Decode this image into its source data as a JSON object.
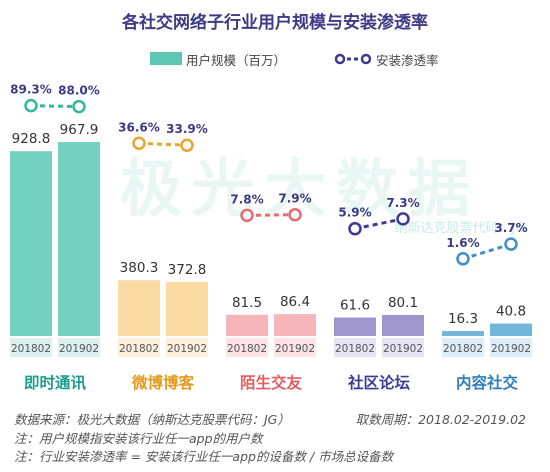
{
  "title": "各社交网络子行业用户规模与安装渗透率",
  "legend": {
    "bar_label": "用户规模（百万）",
    "line_label": "安装渗透率"
  },
  "watermark": "极光大数据",
  "watermark_sub": "纳斯达克股票代码：JG",
  "chart_data": {
    "type": "bar",
    "title": "各社交网络子行业用户规模与安装渗透率",
    "period_labels": [
      "201802",
      "201902"
    ],
    "categories": [
      {
        "name": "即时通讯",
        "values": [
          928.8,
          967.9
        ],
        "penetration": [
          89.3,
          88.0
        ],
        "color": "#5cc8b4",
        "line_color": "#2fb89a",
        "tile": "#dbeff0",
        "name_color": "#1f9e8e"
      },
      {
        "name": "微博博客",
        "values": [
          380.3,
          372.8
        ],
        "penetration": [
          36.6,
          33.9
        ],
        "color": "#f9d38f",
        "line_color": "#e8a528",
        "tile": "#fdf0db",
        "name_color": "#e49a1e"
      },
      {
        "name": "陌生交友",
        "values": [
          81.5,
          86.4
        ],
        "penetration": [
          7.8,
          7.9
        ],
        "color": "#f5a9ad",
        "line_color": "#e86a6f",
        "tile": "#fde3e4",
        "name_color": "#e55c62"
      },
      {
        "name": "社区论坛",
        "values": [
          61.6,
          80.1
        ],
        "penetration": [
          5.9,
          7.3
        ],
        "color": "#8f84c6",
        "line_color": "#3d3a96",
        "tile": "#e6e3f4",
        "name_color": "#3d3a96"
      },
      {
        "name": "内容社交",
        "values": [
          16.3,
          40.8
        ],
        "penetration": [
          1.6,
          3.7
        ],
        "color": "#5aa9d6",
        "line_color": "#3e8fc8",
        "tile": "#dcedf7",
        "name_color": "#2f7dbd"
      }
    ],
    "series": [
      {
        "name": "用户规模（百万）",
        "type": "bar"
      },
      {
        "name": "安装渗透率",
        "type": "line",
        "unit": "%"
      }
    ]
  },
  "notes": {
    "source": "数据来源：极光大数据（纳斯达克股票代码：JG）",
    "period": "取数周期：2018.02-2019.02",
    "note1": "注：用户规模指安装该行业任一app的用户数",
    "note2": "注：行业安装渗透率 = 安装该行业任一app的设备数 / 市场总设备数"
  }
}
